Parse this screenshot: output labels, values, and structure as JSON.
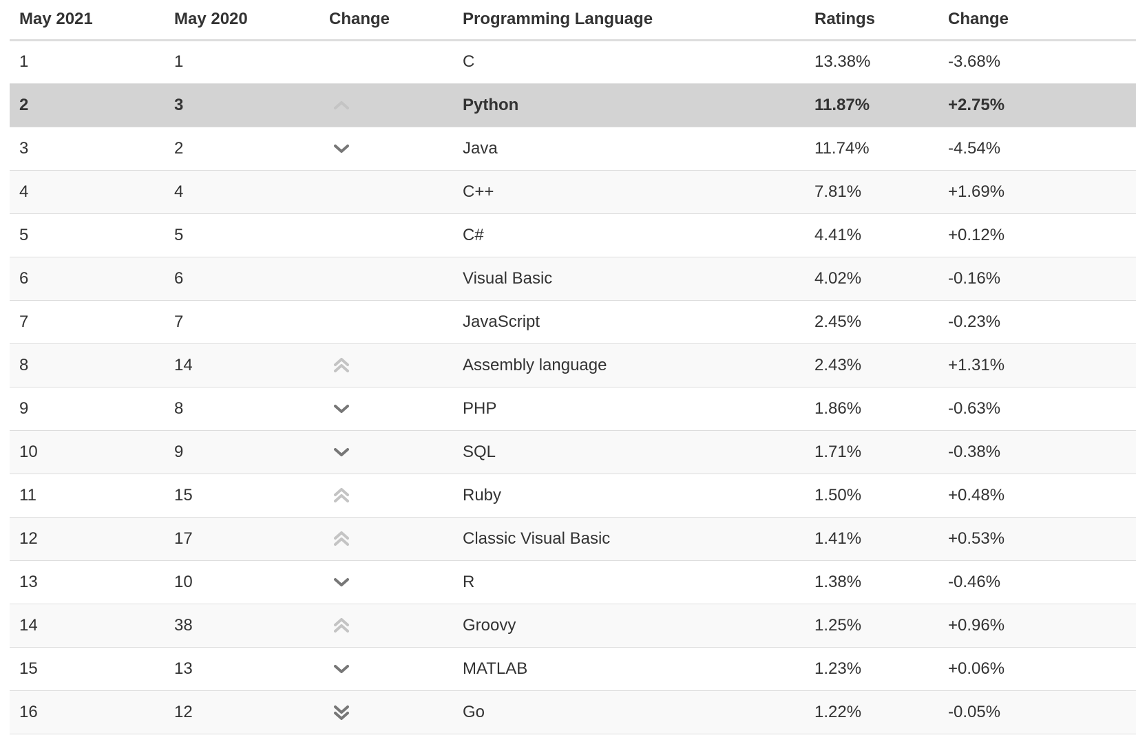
{
  "table": {
    "headers": {
      "rank_2021": "May 2021",
      "rank_2020": "May 2020",
      "trend": "Change",
      "language": "Programming Language",
      "ratings": "Ratings",
      "change": "Change"
    },
    "highlight_index": 1,
    "rows": [
      {
        "rank_2021": "1",
        "rank_2020": "1",
        "trend": "none",
        "language": "C",
        "ratings": "13.38%",
        "change": "-3.68%"
      },
      {
        "rank_2021": "2",
        "rank_2020": "3",
        "trend": "up",
        "language": "Python",
        "ratings": "11.87%",
        "change": "+2.75%"
      },
      {
        "rank_2021": "3",
        "rank_2020": "2",
        "trend": "down",
        "language": "Java",
        "ratings": "11.74%",
        "change": "-4.54%"
      },
      {
        "rank_2021": "4",
        "rank_2020": "4",
        "trend": "none",
        "language": "C++",
        "ratings": "7.81%",
        "change": "+1.69%"
      },
      {
        "rank_2021": "5",
        "rank_2020": "5",
        "trend": "none",
        "language": "C#",
        "ratings": "4.41%",
        "change": "+0.12%"
      },
      {
        "rank_2021": "6",
        "rank_2020": "6",
        "trend": "none",
        "language": "Visual Basic",
        "ratings": "4.02%",
        "change": "-0.16%"
      },
      {
        "rank_2021": "7",
        "rank_2020": "7",
        "trend": "none",
        "language": "JavaScript",
        "ratings": "2.45%",
        "change": "-0.23%"
      },
      {
        "rank_2021": "8",
        "rank_2020": "14",
        "trend": "up-double",
        "language": "Assembly language",
        "ratings": "2.43%",
        "change": "+1.31%"
      },
      {
        "rank_2021": "9",
        "rank_2020": "8",
        "trend": "down",
        "language": "PHP",
        "ratings": "1.86%",
        "change": "-0.63%"
      },
      {
        "rank_2021": "10",
        "rank_2020": "9",
        "trend": "down",
        "language": "SQL",
        "ratings": "1.71%",
        "change": "-0.38%"
      },
      {
        "rank_2021": "11",
        "rank_2020": "15",
        "trend": "up-double",
        "language": "Ruby",
        "ratings": "1.50%",
        "change": "+0.48%"
      },
      {
        "rank_2021": "12",
        "rank_2020": "17",
        "trend": "up-double",
        "language": "Classic Visual Basic",
        "ratings": "1.41%",
        "change": "+0.53%"
      },
      {
        "rank_2021": "13",
        "rank_2020": "10",
        "trend": "down",
        "language": "R",
        "ratings": "1.38%",
        "change": "-0.46%"
      },
      {
        "rank_2021": "14",
        "rank_2020": "38",
        "trend": "up-double",
        "language": "Groovy",
        "ratings": "1.25%",
        "change": "+0.96%"
      },
      {
        "rank_2021": "15",
        "rank_2020": "13",
        "trend": "down",
        "language": "MATLAB",
        "ratings": "1.23%",
        "change": "+0.06%"
      },
      {
        "rank_2021": "16",
        "rank_2020": "12",
        "trend": "down-double",
        "language": "Go",
        "ratings": "1.22%",
        "change": "-0.05%"
      }
    ]
  },
  "icons": {
    "up": "chevron-up-icon",
    "up-double": "double-chevron-up-icon",
    "down": "chevron-down-icon",
    "down-double": "double-chevron-down-icon"
  },
  "colors": {
    "up_arrow": "#c4c4c4",
    "down_arrow": "#777777",
    "highlight_row": "#d3d3d3",
    "stripe_row": "#f9f9f9",
    "text": "#333333"
  }
}
